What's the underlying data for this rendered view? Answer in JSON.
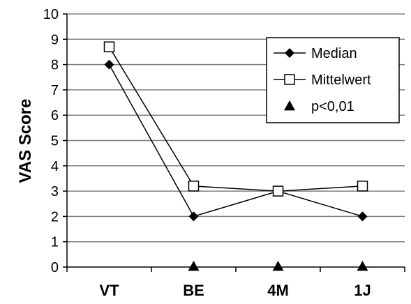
{
  "chart_data": {
    "type": "line",
    "categories": [
      "VT",
      "BE",
      "4M",
      "1J"
    ],
    "ylabel": "VAS Score",
    "xlabel": "",
    "ylim": [
      0,
      10
    ],
    "yticks": [
      0,
      1,
      2,
      3,
      4,
      5,
      6,
      7,
      8,
      9,
      10
    ],
    "grid": true,
    "legend_position": "top-right",
    "series": [
      {
        "name": "Median",
        "marker": "filled-diamond",
        "color": "#000000",
        "values": [
          8,
          2,
          3,
          2
        ]
      },
      {
        "name": "Mittelwert",
        "marker": "open-square",
        "color": "#000000",
        "values": [
          8.7,
          3.2,
          3.0,
          3.2
        ]
      },
      {
        "name": "p<0,01",
        "marker": "filled-triangle",
        "color": "#000000",
        "line": false,
        "values": [
          null,
          0,
          0,
          0
        ]
      }
    ]
  }
}
